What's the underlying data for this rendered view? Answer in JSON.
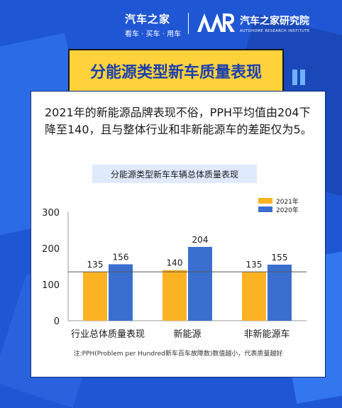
{
  "brand": {
    "name": "汽车之家",
    "tagline": "看车 · 买车 · 用车",
    "institute": "汽车之家研究院",
    "institute_en": "AUTOHOME RESEARCH INSTITUTE"
  },
  "header": {
    "title": "分能源类型新车质量表现"
  },
  "summary": "2021年的新能源品牌表现不俗，PPH平均值由204下降至140，且与整体行业和非新能源车的差距仅为5。",
  "colors": {
    "series_2021": "#fbb324",
    "series_2020": "#3a6fd0"
  },
  "chart_data": {
    "type": "bar",
    "title": "分能源类型新车车辆总体质量表现",
    "categories": [
      "行业总体质量表现",
      "新能源",
      "非新能源车"
    ],
    "series": [
      {
        "name": "2021年",
        "values": [
          135,
          140,
          135
        ]
      },
      {
        "name": "2020年",
        "values": [
          156,
          204,
          155
        ]
      }
    ],
    "yticks": [
      0,
      100,
      200,
      300
    ],
    "ylim": [
      0,
      300
    ],
    "reference_line": 135,
    "legend_position": "top-right",
    "grid": false,
    "xlabel": "",
    "ylabel": "",
    "note": "注:PPH(Problem per Hundred新车百车故障数)数值越小，代表质量越好"
  }
}
